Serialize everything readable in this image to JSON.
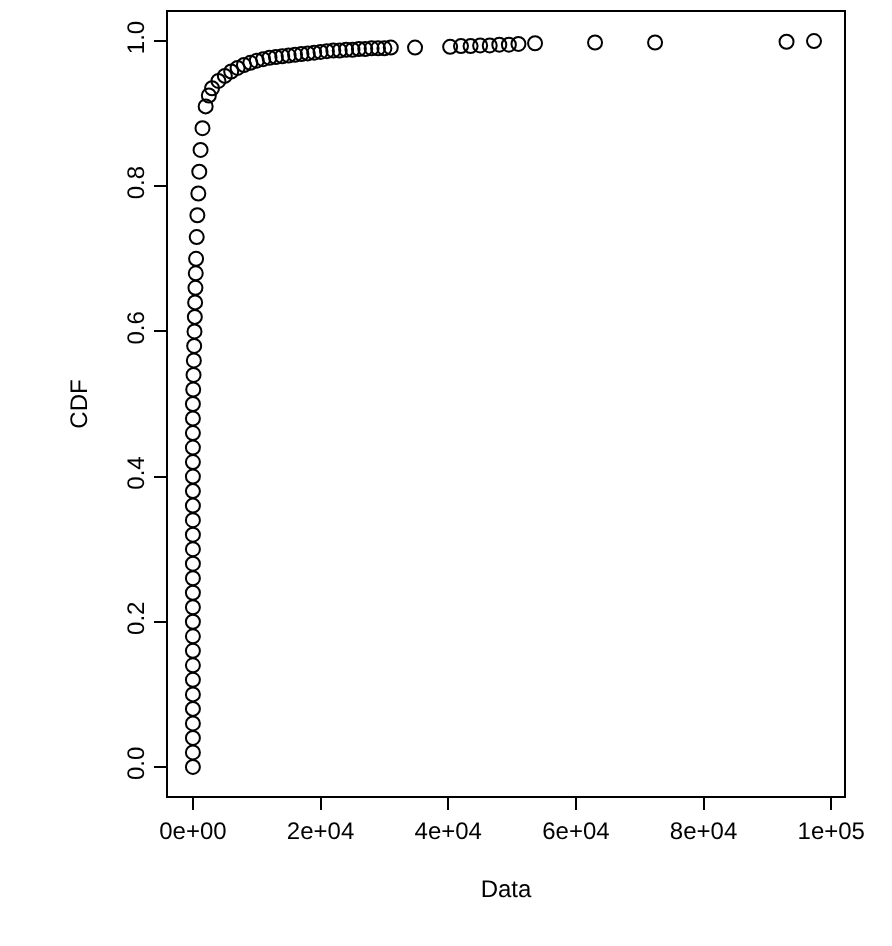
{
  "chart_data": {
    "type": "scatter",
    "xlabel": "Data",
    "ylabel": "CDF",
    "marker": "circle",
    "xlim": [
      -3900,
      102000
    ],
    "ylim": [
      -0.04,
      1.04
    ],
    "xticks": [
      {
        "value": 0,
        "label": "0e+00"
      },
      {
        "value": 20000,
        "label": "2e+04"
      },
      {
        "value": 40000,
        "label": "4e+04"
      },
      {
        "value": 60000,
        "label": "6e+04"
      },
      {
        "value": 80000,
        "label": "8e+04"
      },
      {
        "value": 100000,
        "label": "1e+05"
      }
    ],
    "yticks": [
      {
        "value": 0,
        "label": "0.0"
      },
      {
        "value": 0.2,
        "label": "0.2"
      },
      {
        "value": 0.4,
        "label": "0.4"
      },
      {
        "value": 0.6,
        "label": "0.6"
      },
      {
        "value": 0.8,
        "label": "0.8"
      },
      {
        "value": 1,
        "label": "1.0"
      }
    ],
    "series": [
      {
        "color": "#000000",
        "x": [
          0,
          0,
          0,
          0,
          0,
          0,
          0,
          0,
          0,
          0,
          0,
          0,
          0,
          0,
          0,
          0,
          0,
          0,
          0,
          0,
          0,
          0,
          0,
          0,
          0,
          0,
          50,
          100,
          150,
          200,
          250,
          300,
          350,
          400,
          450,
          500,
          600,
          700,
          850,
          1000,
          1200,
          1500,
          2000,
          2500,
          3000,
          4000,
          5000,
          6000,
          7000,
          8000,
          9000,
          10000,
          11000,
          12000,
          13000,
          14000,
          15000,
          16000,
          17000,
          18000,
          19000,
          20000,
          21000,
          22000,
          23000,
          24000,
          25000,
          26000,
          27000,
          28000,
          29000,
          30000,
          31000,
          34800,
          40300,
          42000,
          43500,
          45000,
          46500,
          48000,
          49500,
          51000,
          53600,
          63000,
          72400,
          93000,
          97300
        ],
        "values": [
          0,
          0.02,
          0.04,
          0.06,
          0.08,
          0.1,
          0.12,
          0.14,
          0.16,
          0.18,
          0.2,
          0.22,
          0.24,
          0.26,
          0.28,
          0.3,
          0.32,
          0.34,
          0.36,
          0.38,
          0.4,
          0.42,
          0.44,
          0.46,
          0.48,
          0.5,
          0.52,
          0.54,
          0.56,
          0.58,
          0.6,
          0.62,
          0.64,
          0.66,
          0.68,
          0.7,
          0.73,
          0.76,
          0.79,
          0.82,
          0.85,
          0.88,
          0.91,
          0.925,
          0.935,
          0.945,
          0.952,
          0.958,
          0.963,
          0.967,
          0.97,
          0.973,
          0.975,
          0.977,
          0.978,
          0.979,
          0.98,
          0.981,
          0.982,
          0.983,
          0.984,
          0.985,
          0.986,
          0.987,
          0.987,
          0.988,
          0.988,
          0.989,
          0.989,
          0.99,
          0.99,
          0.99,
          0.991,
          0.991,
          0.992,
          0.993,
          0.993,
          0.994,
          0.994,
          0.995,
          0.995,
          0.996,
          0.997,
          0.998,
          0.998,
          0.999,
          1.0
        ]
      }
    ]
  }
}
